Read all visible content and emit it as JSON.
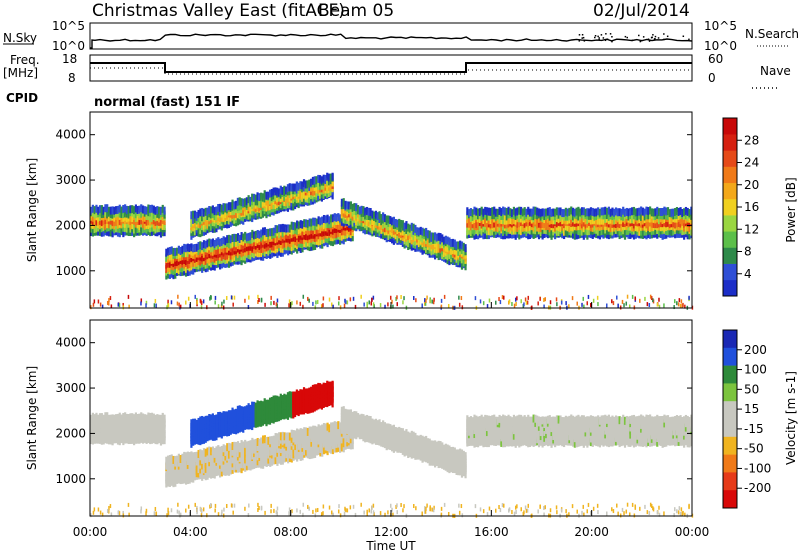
{
  "header": {
    "radar": "Christmas Valley East (fitACF)",
    "beam": "Beam 05",
    "date": "02/Jul/2014"
  },
  "noise_panel": {
    "left_label": "N.Sky",
    "right_label": "N.Search",
    "y_tick_top": "10^5",
    "y_tick_bottom": "10^0",
    "right_tick_top": "10^5",
    "right_tick_bottom": "10^0"
  },
  "freq_panel": {
    "left_label_top": "Freq.",
    "left_label_bottom": "[MHz]",
    "left_tick_top": "18",
    "left_tick_bottom": "8",
    "right_label": "Nave",
    "right_tick_top": "60",
    "right_tick_bottom": "0"
  },
  "cpid_panel": {
    "label": "CPID",
    "text": "normal (fast) 151 IF"
  },
  "chart_data": [
    {
      "type": "heatmap",
      "name": "power-panel",
      "ylabel": "Slant Range [km]",
      "xlabel": "Time UT",
      "x_ticks": [
        "00:00",
        "04:00",
        "08:00",
        "12:00",
        "16:00",
        "20:00",
        "00:00"
      ],
      "x_range_hours": [
        0,
        24
      ],
      "y_ticks": [
        "1000",
        "2000",
        "3000",
        "4000"
      ],
      "y_range_km": [
        180,
        4500
      ],
      "colorbar": {
        "label": "Power [dB]",
        "tick_labels": [
          "4",
          "8",
          "12",
          "16",
          "20",
          "24",
          "28"
        ],
        "colors": [
          "#1c2ec8",
          "#2f4fd6",
          "#2e8a4a",
          "#5cbf4a",
          "#9ad641",
          "#f0d020",
          "#f3a81a",
          "#f07a18",
          "#e64a18",
          "#d62010",
          "#c80808"
        ]
      },
      "echo_bands": [
        {
          "t_start": 0.0,
          "t_end": 3.0,
          "range_center": 2100,
          "width": 500,
          "level": 0.6
        },
        {
          "t_start": 3.0,
          "t_end": 10.5,
          "range_center_start": 1150,
          "range_center_end": 2000,
          "width": 500,
          "level": 0.85
        },
        {
          "t_start": 4.0,
          "t_end": 9.7,
          "range_center_start": 2000,
          "range_center_end": 2900,
          "width": 400,
          "level": 0.5
        },
        {
          "t_start": 10.0,
          "t_end": 15.0,
          "range_center_start": 2300,
          "range_center_end": 1300,
          "width": 400,
          "level": 0.5
        },
        {
          "t_start": 15.0,
          "t_end": 24.0,
          "range_center": 2050,
          "width": 500,
          "level": 0.65
        }
      ]
    },
    {
      "type": "heatmap",
      "name": "velocity-panel",
      "ylabel": "Slant Range [km]",
      "xlabel": "Time UT",
      "x_ticks": [
        "00:00",
        "04:00",
        "08:00",
        "12:00",
        "16:00",
        "20:00",
        "00:00"
      ],
      "x_range_hours": [
        0,
        24
      ],
      "y_ticks": [
        "1000",
        "2000",
        "3000",
        "4000"
      ],
      "y_range_km": [
        180,
        4500
      ],
      "colorbar": {
        "label": "Velocity [m s-1]",
        "tick_labels": [
          "200",
          "100",
          "50",
          "15",
          "-15",
          "-50",
          "-100",
          "-200"
        ],
        "colors": [
          "#1a28b4",
          "#2050dc",
          "#2e8a3a",
          "#7cc43e",
          "#c8c8c0",
          "#c8c8c0",
          "#f0b420",
          "#f07a18",
          "#e63a18",
          "#d80808"
        ]
      }
    }
  ],
  "time_axis_label": "Time UT"
}
